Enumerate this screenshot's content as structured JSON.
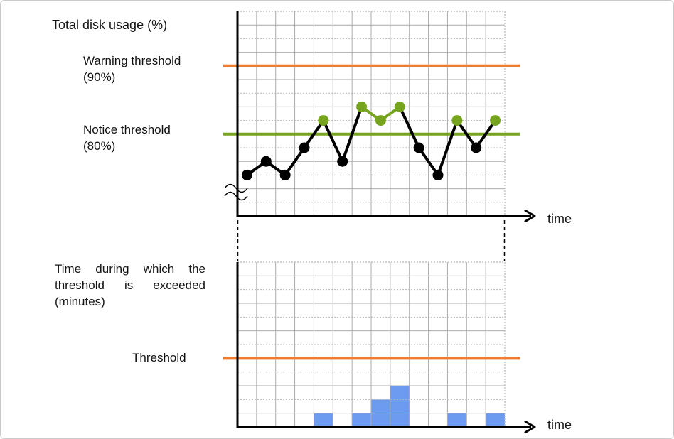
{
  "labels": {
    "top_chart_title": "Total disk usage (%)",
    "warning_threshold_line1": "Warning threshold",
    "warning_threshold_line2": "(90%)",
    "notice_threshold_line1": "Notice threshold",
    "notice_threshold_line2": "(80%)",
    "bottom_chart_title": "Time during which the threshold is exceeded (minutes)",
    "bottom_threshold_label": "Threshold",
    "time_axis_top": "time",
    "time_axis_bottom": "time"
  },
  "colors": {
    "warning_orange": "#ED7D31",
    "notice_green": "#76A41F",
    "series_black": "#000000",
    "bar_blue": "#6D9BF0",
    "grid_gray": "#ABABAB",
    "grid_dotted_gray": "#B8B8B8",
    "axis_black": "#000000"
  },
  "chart_data": [
    {
      "type": "line",
      "title": "Total disk usage (%)",
      "xlabel": "time",
      "ylabel": "Total disk usage (%)",
      "x": [
        1,
        2,
        3,
        4,
        5,
        6,
        7,
        8,
        9,
        10,
        11,
        12,
        13,
        14
      ],
      "values": [
        74,
        76,
        74,
        78,
        82,
        76,
        84,
        82,
        84,
        78,
        74,
        82,
        78,
        82
      ],
      "point_colors": [
        "black",
        "black",
        "black",
        "black",
        "green",
        "black",
        "green",
        "green",
        "green",
        "black",
        "black",
        "green",
        "black",
        "green"
      ],
      "thresholds": [
        {
          "name": "Warning threshold",
          "value": 90,
          "color": "#ED7D31"
        },
        {
          "name": "Notice threshold",
          "value": 80,
          "color": "#76A41F"
        }
      ],
      "ylim": [
        68,
        98
      ],
      "y_axis_break": true,
      "grid": true,
      "legend": "none"
    },
    {
      "type": "bar",
      "title": "Time during which the threshold is exceeded (minutes)",
      "xlabel": "time",
      "x": [
        1,
        2,
        3,
        4,
        5,
        6,
        7,
        8,
        9,
        10,
        11,
        12,
        13,
        14
      ],
      "values": [
        0,
        0,
        0,
        0,
        1,
        0,
        1,
        2,
        3,
        0,
        0,
        1,
        0,
        1
      ],
      "threshold": {
        "name": "Threshold",
        "value": 5,
        "color": "#ED7D31"
      },
      "ylim": [
        0,
        12
      ],
      "grid": true,
      "legend": "none"
    }
  ]
}
